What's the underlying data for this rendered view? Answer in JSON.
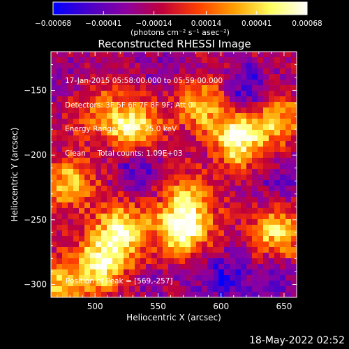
{
  "chart_data": {
    "type": "heatmap",
    "title": "Reconstructed RHESSI Image",
    "xlabel": "Heliocentric X (arcsec)",
    "ylabel": "Heliocentric Y (arcsec)",
    "xlim": [
      465,
      660
    ],
    "ylim": [
      -310,
      -120
    ],
    "x_ticks": [
      500,
      550,
      600,
      650
    ],
    "y_ticks": [
      -150,
      -200,
      -250,
      -300
    ],
    "colorbar": {
      "range": [
        -0.00068,
        0.00068
      ],
      "tick_values": [
        -0.00068,
        -0.00041,
        -0.00014,
        0.00014,
        0.00041,
        0.00068
      ],
      "tick_labels": [
        "-0.00068",
        "-0.00041",
        "-0.00014",
        "0.00014",
        "0.00041",
        "0.00068"
      ],
      "units": "(photons cm⁻² s⁻¹ asec⁻²)",
      "colors": [
        "#0000ff",
        "#4b00c8",
        "#8c00a0",
        "#c0003a",
        "#ff4000",
        "#ffa000",
        "#ffff60",
        "#ffffff"
      ]
    },
    "annotations": [
      "17-Jan-2015 05:58:00.000 to 05:59:00.000",
      "Detectors: 3F 5F 6F 7F 8F 9F; Att 0",
      "Energy Range: 12.0 - 25.0 keV",
      "Clean     Total counts: 1.09E+03"
    ],
    "peak_label": "Position of Peak = [569,-257]",
    "sources": [
      {
        "x": 569,
        "y": -257,
        "value": 0.00068
      },
      {
        "x": 520,
        "y": -258,
        "value": 0.00052
      },
      {
        "x": 505,
        "y": -285,
        "value": 0.0005
      },
      {
        "x": 530,
        "y": -178,
        "value": 0.00055
      },
      {
        "x": 615,
        "y": -188,
        "value": 0.0006
      },
      {
        "x": 645,
        "y": -260,
        "value": 0.00045
      },
      {
        "x": 585,
        "y": -160,
        "value": 0.00035
      },
      {
        "x": 480,
        "y": -222,
        "value": 0.0004
      },
      {
        "x": 645,
        "y": -172,
        "value": 0.0003
      },
      {
        "x": 575,
        "y": -232,
        "value": 0.00022
      },
      {
        "x": 470,
        "y": -300,
        "value": 0.00035
      },
      {
        "x": 500,
        "y": -165,
        "value": 0.00015
      }
    ],
    "negatives": [
      {
        "x": 535,
        "y": -210,
        "value": -0.0005
      },
      {
        "x": 620,
        "y": -150,
        "value": -0.0006
      },
      {
        "x": 600,
        "y": -295,
        "value": -0.00055
      },
      {
        "x": 640,
        "y": -295,
        "value": -0.00045
      },
      {
        "x": 650,
        "y": -220,
        "value": -0.0004
      },
      {
        "x": 480,
        "y": -140,
        "value": -0.0003
      },
      {
        "x": 560,
        "y": -135,
        "value": -0.0003
      },
      {
        "x": 545,
        "y": -300,
        "value": -0.0003
      }
    ]
  },
  "footer": {
    "timestamp": "18-May-2022 02:52"
  }
}
